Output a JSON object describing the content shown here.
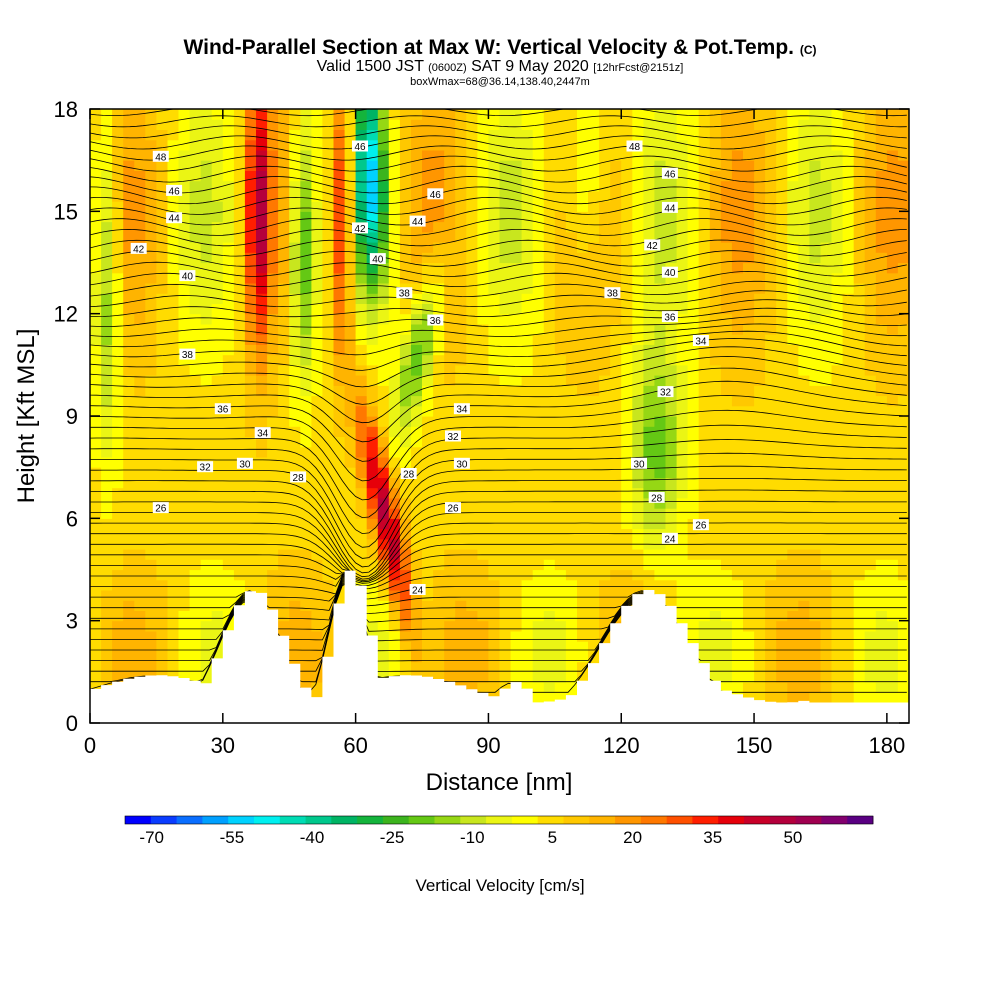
{
  "chart_data": {
    "type": "heatmap",
    "title": "Wind-Parallel Section at Max W: Vertical Velocity & Pot.Temp.",
    "title_mark": "(C)",
    "subtitle_parts": [
      "Valid 1500 JST",
      "(0600Z)",
      "SAT 9 May 2020",
      "[12hrFcst@2151z]"
    ],
    "subtitle2": "boxWmax=68@36.14,138.40,2447m",
    "xlabel": "Distance [nm]",
    "ylabel": "Height [Kft MSL]",
    "xlim": [
      0,
      185
    ],
    "ylim": [
      0,
      18
    ],
    "xticks": [
      0,
      30,
      60,
      90,
      120,
      150,
      180
    ],
    "yticks": [
      0,
      3,
      6,
      9,
      12,
      15,
      18
    ],
    "colorbar": {
      "label": "Vertical Velocity [cm/s]",
      "tick_labels": [
        "-70",
        "-55",
        "-40",
        "-25",
        "-10",
        "5",
        "20",
        "35",
        "50"
      ],
      "tick_values": [
        -70,
        -55,
        -40,
        -25,
        -10,
        5,
        20,
        35,
        50
      ],
      "bins": [
        -75,
        -70,
        -65,
        -60,
        -55,
        -50,
        -45,
        -40,
        -35,
        -30,
        -25,
        -20,
        -15,
        -10,
        -5,
        0,
        5,
        10,
        15,
        20,
        25,
        30,
        35,
        40,
        45,
        50,
        55,
        60,
        65
      ],
      "colors": [
        "#0000ff",
        "#0a3cff",
        "#0a6eff",
        "#00a0ff",
        "#00d2ff",
        "#00f0f0",
        "#00dcb4",
        "#00c88c",
        "#00b464",
        "#14b43c",
        "#3cb41e",
        "#64c814",
        "#96d714",
        "#c8e61e",
        "#ebf514",
        "#ffff00",
        "#ffdc00",
        "#ffc800",
        "#ffb400",
        "#ff9600",
        "#ff7800",
        "#ff5000",
        "#ff1e00",
        "#e6000a",
        "#c80028",
        "#b4003c",
        "#a00050",
        "#82006e",
        "#5a0082"
      ]
    },
    "theta_labels": [
      {
        "text": "48",
        "x": 16,
        "y": 16.6
      },
      {
        "text": "46",
        "x": 19,
        "y": 15.6
      },
      {
        "text": "44",
        "x": 19,
        "y": 14.8
      },
      {
        "text": "42",
        "x": 11,
        "y": 13.9
      },
      {
        "text": "40",
        "x": 22,
        "y": 13.1
      },
      {
        "text": "38",
        "x": 22,
        "y": 10.8
      },
      {
        "text": "36",
        "x": 30,
        "y": 9.2
      },
      {
        "text": "34",
        "x": 39,
        "y": 8.5
      },
      {
        "text": "32",
        "x": 26,
        "y": 7.5
      },
      {
        "text": "30",
        "x": 35,
        "y": 7.6
      },
      {
        "text": "28",
        "x": 47,
        "y": 7.2
      },
      {
        "text": "26",
        "x": 16,
        "y": 6.3
      },
      {
        "text": "46",
        "x": 61,
        "y": 16.9
      },
      {
        "text": "42",
        "x": 61,
        "y": 14.5
      },
      {
        "text": "40",
        "x": 65,
        "y": 13.6
      },
      {
        "text": "38",
        "x": 71,
        "y": 12.6
      },
      {
        "text": "36",
        "x": 78,
        "y": 11.8
      },
      {
        "text": "46",
        "x": 78,
        "y": 15.5
      },
      {
        "text": "44",
        "x": 74,
        "y": 14.7
      },
      {
        "text": "34",
        "x": 84,
        "y": 9.2
      },
      {
        "text": "32",
        "x": 82,
        "y": 8.4
      },
      {
        "text": "30",
        "x": 84,
        "y": 7.6
      },
      {
        "text": "28",
        "x": 72,
        "y": 7.3
      },
      {
        "text": "26",
        "x": 82,
        "y": 6.3
      },
      {
        "text": "24",
        "x": 74,
        "y": 3.9
      },
      {
        "text": "48",
        "x": 123,
        "y": 16.9
      },
      {
        "text": "46",
        "x": 131,
        "y": 16.1
      },
      {
        "text": "44",
        "x": 131,
        "y": 15.1
      },
      {
        "text": "42",
        "x": 127,
        "y": 14.0
      },
      {
        "text": "40",
        "x": 131,
        "y": 13.2
      },
      {
        "text": "38",
        "x": 118,
        "y": 12.6
      },
      {
        "text": "36",
        "x": 131,
        "y": 11.9
      },
      {
        "text": "34",
        "x": 138,
        "y": 11.2
      },
      {
        "text": "32",
        "x": 130,
        "y": 9.7
      },
      {
        "text": "30",
        "x": 124,
        "y": 7.6
      },
      {
        "text": "28",
        "x": 128,
        "y": 6.6
      },
      {
        "text": "26",
        "x": 138,
        "y": 5.8
      },
      {
        "text": "24",
        "x": 131,
        "y": 5.4
      }
    ]
  }
}
